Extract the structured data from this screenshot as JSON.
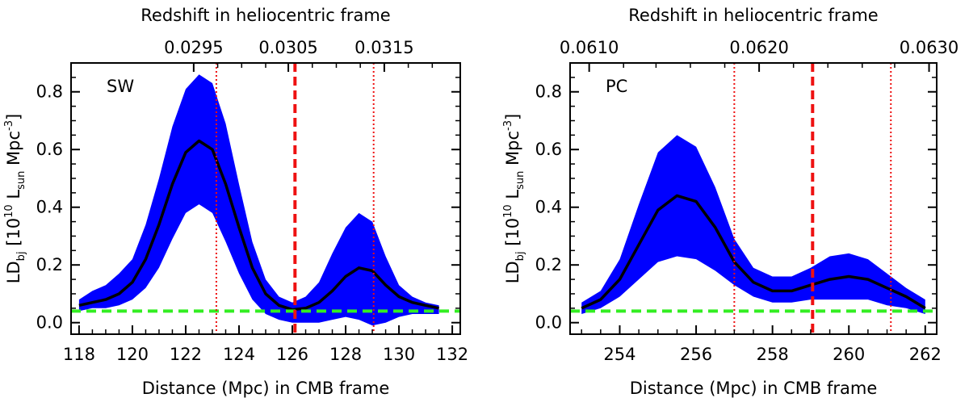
{
  "chart_data": [
    {
      "type": "line",
      "panel_label": "SW",
      "xlabel": "Distance (Mpc) in CMB frame",
      "ylabel_parts": {
        "base": "LD",
        "sub": "bj",
        "open": " [10",
        "exp": "10",
        "mid": " L",
        "unit_sub": "sun",
        "unit": " Mpc",
        "unit_exp": "-3",
        "close": "]"
      },
      "top_axis_title": "Redshift in heliocentric frame",
      "xlim": [
        117.7,
        132.3
      ],
      "ylim": [
        -0.04,
        0.9
      ],
      "x_ticks": [
        118,
        120,
        122,
        124,
        126,
        128,
        130,
        132
      ],
      "x_tick_labels": [
        "118",
        "120",
        "122",
        "124",
        "126",
        "128",
        "130",
        "132"
      ],
      "y_ticks": [
        0.0,
        0.2,
        0.4,
        0.6,
        0.8
      ],
      "y_tick_labels": [
        "0.0",
        "0.2",
        "0.4",
        "0.6",
        "0.8"
      ],
      "top_ticks": [
        {
          "distance": 122.3,
          "label": "0.0295"
        },
        {
          "distance": 125.85,
          "label": "0.0305"
        },
        {
          "distance": 129.45,
          "label": "0.0315"
        }
      ],
      "top_minor_ticks": [
        123.2,
        124.1,
        125.0,
        126.75,
        127.65,
        128.55,
        130.35,
        131.25
      ],
      "x": [
        118,
        118.5,
        119,
        119.5,
        120,
        120.5,
        121,
        121.5,
        122,
        122.5,
        123,
        123.5,
        124,
        124.5,
        125,
        125.5,
        126,
        126.5,
        127,
        127.5,
        128,
        128.5,
        129,
        129.5,
        130,
        130.5,
        131,
        131.5
      ],
      "series": [
        {
          "name": "mean",
          "values": [
            0.06,
            0.07,
            0.08,
            0.1,
            0.14,
            0.22,
            0.34,
            0.48,
            0.59,
            0.63,
            0.6,
            0.48,
            0.33,
            0.19,
            0.1,
            0.06,
            0.045,
            0.05,
            0.07,
            0.11,
            0.16,
            0.19,
            0.18,
            0.13,
            0.09,
            0.07,
            0.06,
            0.05
          ]
        },
        {
          "name": "upper",
          "values": [
            0.08,
            0.11,
            0.13,
            0.17,
            0.22,
            0.34,
            0.5,
            0.68,
            0.81,
            0.86,
            0.83,
            0.69,
            0.48,
            0.28,
            0.15,
            0.09,
            0.07,
            0.09,
            0.14,
            0.24,
            0.33,
            0.38,
            0.35,
            0.23,
            0.13,
            0.09,
            0.07,
            0.06
          ]
        },
        {
          "name": "lower",
          "values": [
            0.04,
            0.05,
            0.05,
            0.06,
            0.08,
            0.12,
            0.19,
            0.29,
            0.38,
            0.41,
            0.38,
            0.28,
            0.17,
            0.08,
            0.03,
            0.01,
            0.0,
            0.0,
            0.0,
            0.01,
            0.02,
            0.01,
            -0.01,
            0.0,
            0.02,
            0.03,
            0.03,
            0.03
          ]
        }
      ],
      "hlines": [
        {
          "y": 0.04,
          "style": "dashed",
          "color": "#33ee22"
        }
      ],
      "vlines": [
        {
          "x": 126.1,
          "style": "dashed",
          "color": "#ee1111"
        },
        {
          "x": 123.15,
          "style": "dotted",
          "color": "#ee1111"
        },
        {
          "x": 129.05,
          "style": "dotted",
          "color": "#ee1111"
        }
      ],
      "colors": {
        "band": "#0000ff",
        "line": "#000000"
      }
    },
    {
      "type": "line",
      "panel_label": "PC",
      "xlabel": "Distance (Mpc) in CMB frame",
      "ylabel_parts": {
        "base": "LD",
        "sub": "bj",
        "open": " [10",
        "exp": "10",
        "mid": " L",
        "unit_sub": "sun",
        "unit": " Mpc",
        "unit_exp": "-3",
        "close": "]"
      },
      "top_axis_title": "Redshift in heliocentric frame",
      "xlim": [
        252.7,
        262.3
      ],
      "ylim": [
        -0.04,
        0.9
      ],
      "x_ticks": [
        254,
        256,
        258,
        260,
        262
      ],
      "x_tick_labels": [
        "254",
        "256",
        "258",
        "260",
        "262"
      ],
      "y_ticks": [
        0.0,
        0.2,
        0.4,
        0.6,
        0.8
      ],
      "y_tick_labels": [
        "0.0",
        "0.2",
        "0.4",
        "0.6",
        "0.8"
      ],
      "top_ticks": [
        {
          "distance": 253.2,
          "label": "0.0610"
        },
        {
          "distance": 257.65,
          "label": "0.0620"
        },
        {
          "distance": 262.1,
          "label": "0.0630"
        }
      ],
      "top_minor_ticks": [
        254.1,
        254.95,
        255.85,
        256.75,
        258.55,
        259.45,
        260.35,
        261.2
      ],
      "x": [
        253,
        253.5,
        254,
        254.5,
        255,
        255.5,
        256,
        256.5,
        257,
        257.5,
        258,
        258.5,
        259,
        259.5,
        260,
        260.5,
        261,
        261.5,
        262
      ],
      "series": [
        {
          "name": "mean",
          "values": [
            0.05,
            0.08,
            0.15,
            0.27,
            0.39,
            0.44,
            0.42,
            0.33,
            0.21,
            0.14,
            0.11,
            0.11,
            0.13,
            0.15,
            0.16,
            0.15,
            0.12,
            0.09,
            0.05
          ]
        },
        {
          "name": "upper",
          "values": [
            0.07,
            0.11,
            0.22,
            0.41,
            0.59,
            0.65,
            0.61,
            0.47,
            0.29,
            0.19,
            0.16,
            0.16,
            0.19,
            0.23,
            0.24,
            0.22,
            0.17,
            0.12,
            0.08
          ]
        },
        {
          "name": "lower",
          "values": [
            0.03,
            0.05,
            0.09,
            0.15,
            0.21,
            0.23,
            0.22,
            0.18,
            0.13,
            0.09,
            0.07,
            0.07,
            0.08,
            0.08,
            0.08,
            0.08,
            0.06,
            0.05,
            0.03
          ]
        }
      ],
      "hlines": [
        {
          "y": 0.04,
          "style": "dashed",
          "color": "#33ee22"
        }
      ],
      "vlines": [
        {
          "x": 259.05,
          "style": "dashed",
          "color": "#ee1111"
        },
        {
          "x": 257.0,
          "style": "dotted",
          "color": "#ee1111"
        },
        {
          "x": 261.1,
          "style": "dotted",
          "color": "#ee1111"
        }
      ],
      "colors": {
        "band": "#0000ff",
        "line": "#000000"
      }
    }
  ]
}
